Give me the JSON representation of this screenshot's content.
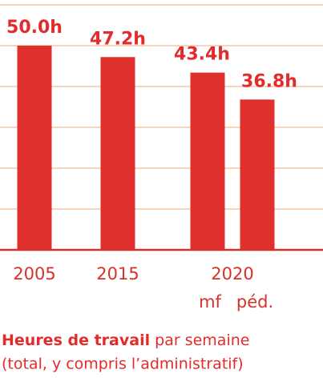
{
  "chart_data": {
    "type": "bar",
    "categories": [
      "2005",
      "2015",
      "mf",
      "péd."
    ],
    "category_group": {
      "label": "2020",
      "members": [
        2,
        3
      ]
    },
    "values": [
      50.0,
      47.2,
      43.4,
      36.8
    ],
    "value_labels": [
      "50.0h",
      "47.2h",
      "43.4h",
      "36.8h"
    ],
    "color": "#e0302e",
    "ylim": [
      0,
      60
    ],
    "yticks": [
      0,
      10,
      20,
      30,
      40,
      50,
      60
    ],
    "grid": true,
    "caption": {
      "bold": "Heures de travail",
      "normal": " par semaine",
      "line2": "(total, y compris l’administratif)"
    }
  }
}
